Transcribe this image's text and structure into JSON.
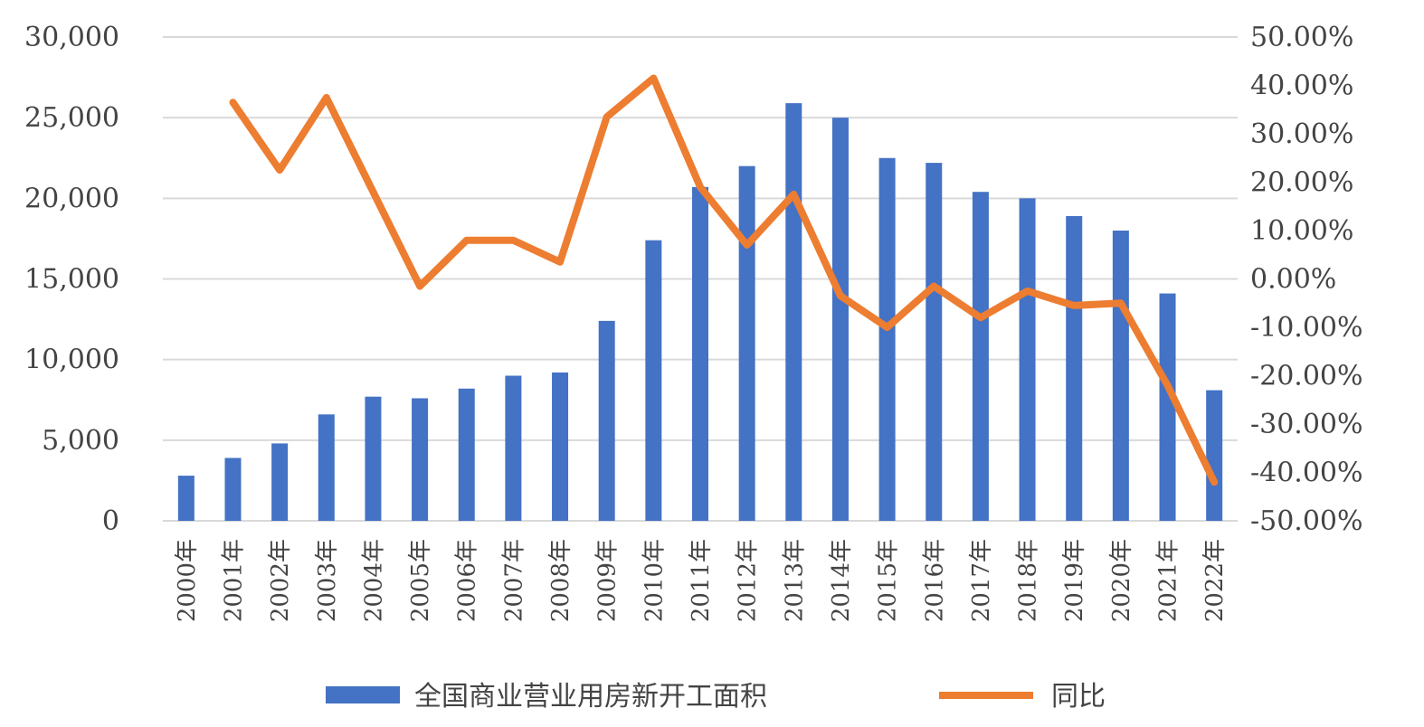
{
  "chart_data": {
    "type": "bar",
    "categories": [
      "2000年",
      "2001年",
      "2002年",
      "2003年",
      "2004年",
      "2005年",
      "2006年",
      "2007年",
      "2008年",
      "2009年",
      "2010年",
      "2011年",
      "2012年",
      "2013年",
      "2014年",
      "2015年",
      "2016年",
      "2017年",
      "2018年",
      "2019年",
      "2020年",
      "2021年",
      "2022年"
    ],
    "series": [
      {
        "name": "全国商业营业用房新开工面积",
        "type": "bar",
        "axis": "left",
        "color": "#4472c4",
        "values": [
          2800,
          3900,
          4800,
          6600,
          7700,
          7600,
          8200,
          9000,
          9200,
          12400,
          17400,
          20700,
          22000,
          25900,
          25000,
          22500,
          22200,
          20400,
          20000,
          18900,
          18000,
          14100,
          8100
        ]
      },
      {
        "name": "同比",
        "type": "line",
        "axis": "right",
        "color": "#ed7d31",
        "values": [
          null,
          36.5,
          22.5,
          37.5,
          18.0,
          -1.5,
          8.0,
          8.0,
          3.5,
          33.5,
          41.5,
          19.0,
          7.0,
          17.5,
          -3.5,
          -10.0,
          -1.5,
          -8.0,
          -2.5,
          -5.5,
          -5.0,
          -22.0,
          -42.0
        ]
      }
    ],
    "y_left": {
      "ylim": [
        0,
        30000
      ],
      "ticks": [
        "0",
        "5,000",
        "10,000",
        "15,000",
        "20,000",
        "25,000",
        "30,000"
      ],
      "tick_values": [
        0,
        5000,
        10000,
        15000,
        20000,
        25000,
        30000
      ]
    },
    "y_right": {
      "ylim": [
        -50,
        50
      ],
      "ticks": [
        "-50.00%",
        "-40.00%",
        "-30.00%",
        "-20.00%",
        "-10.00%",
        "0.00%",
        "10.00%",
        "20.00%",
        "30.00%",
        "40.00%",
        "50.00%"
      ],
      "tick_values": [
        -50,
        -40,
        -30,
        -20,
        -10,
        0,
        10,
        20,
        30,
        40,
        50
      ]
    },
    "grid": true,
    "legend": {
      "placement": "bottom-center",
      "items": [
        "全国商业营业用房新开工面积",
        "同比"
      ]
    }
  }
}
